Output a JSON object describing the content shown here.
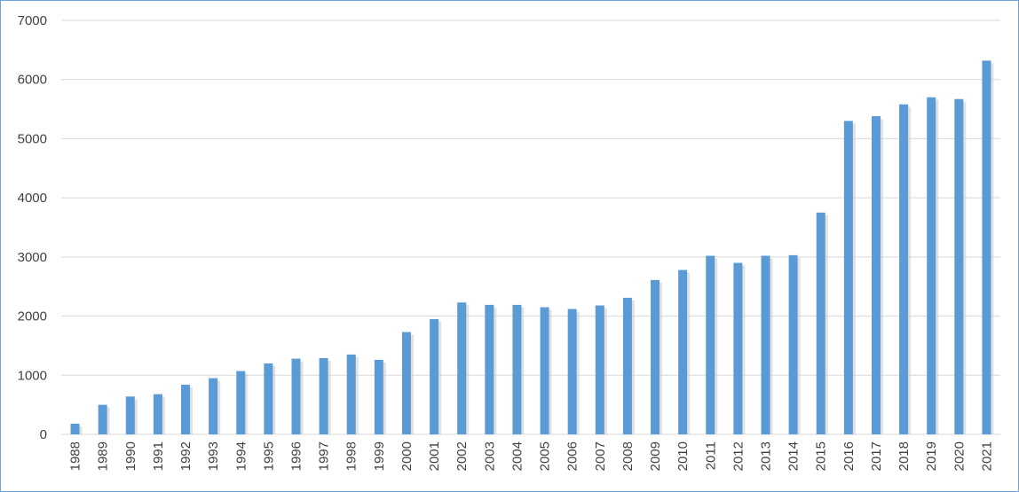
{
  "chart_data": {
    "type": "bar",
    "title": "",
    "xlabel": "",
    "ylabel": "",
    "ylim": [
      0,
      7000
    ],
    "yticks": [
      "0",
      "1000",
      "2000",
      "3000",
      "4000",
      "5000",
      "6000",
      "7000"
    ],
    "grid": true,
    "legend": "none",
    "bar_color": "#5b9bd5",
    "categories": [
      "1988",
      "1989",
      "1990",
      "1991",
      "1992",
      "1993",
      "1994",
      "1995",
      "1996",
      "1997",
      "1998",
      "1999",
      "2000",
      "2001",
      "2002",
      "2003",
      "2004",
      "2005",
      "2006",
      "2007",
      "2008",
      "2009",
      "2010",
      "2011",
      "2012",
      "2013",
      "2014",
      "2015",
      "2016",
      "2017",
      "2018",
      "2019",
      "2020",
      "2021"
    ],
    "values": [
      180,
      500,
      640,
      680,
      840,
      950,
      1070,
      1200,
      1280,
      1290,
      1350,
      1260,
      1730,
      1950,
      2230,
      2190,
      2190,
      2150,
      2120,
      2180,
      2310,
      2610,
      2780,
      3020,
      2900,
      3020,
      3030,
      3750,
      5300,
      5380,
      5580,
      5700,
      5670,
      6320
    ]
  }
}
